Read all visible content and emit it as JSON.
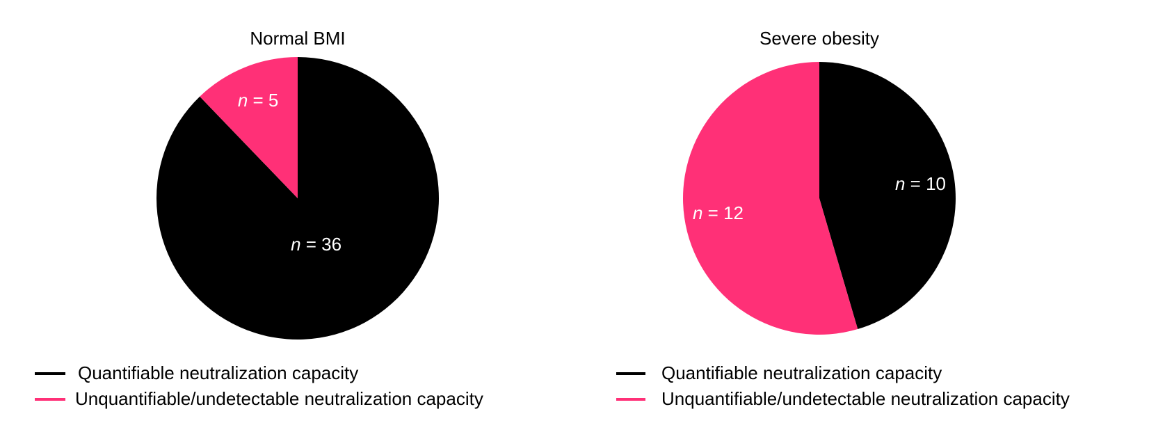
{
  "colors": {
    "quantifiable": "#000000",
    "unquantifiable": "#ff3077",
    "background": "#ffffff",
    "label": "#ffffff"
  },
  "legend": {
    "items": [
      {
        "label": "Quantifiable neutralization capacity",
        "color": "#000000"
      },
      {
        "label": "Unquantifiable/undetectable neutralization capacity",
        "color": "#ff3077"
      }
    ]
  },
  "chart_data": [
    {
      "type": "pie",
      "title": "Normal BMI",
      "slices": [
        {
          "name": "Quantifiable neutralization capacity",
          "value": 36,
          "label_prefix": "n",
          "label_rest": " = 36",
          "color": "#000000"
        },
        {
          "name": "Unquantifiable/undetectable neutralization capacity",
          "value": 5,
          "label_prefix": "n",
          "label_rest": " = 5",
          "color": "#ff3077"
        }
      ],
      "start_angle_deg": 0,
      "direction": "clockwise",
      "legend_placement": "bottom"
    },
    {
      "type": "pie",
      "title": "Severe obesity",
      "slices": [
        {
          "name": "Quantifiable neutralization capacity",
          "value": 10,
          "label_prefix": "n",
          "label_rest": " = 10",
          "color": "#000000"
        },
        {
          "name": "Unquantifiable/undetectable neutralization capacity",
          "value": 12,
          "label_prefix": "n",
          "label_rest": " = 12",
          "color": "#ff3077"
        }
      ],
      "start_angle_deg": 0,
      "direction": "clockwise",
      "legend_placement": "bottom"
    }
  ]
}
